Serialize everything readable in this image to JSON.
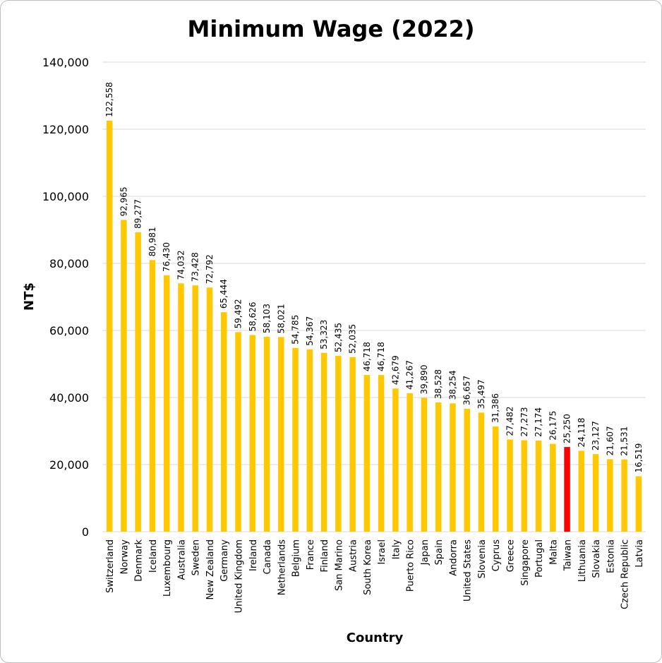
{
  "chart_data": {
    "type": "bar",
    "title": "Minimum Wage (2022)",
    "xlabel": "Country",
    "ylabel": "NT$",
    "ylim": [
      0,
      140000
    ],
    "yticks": [
      0,
      20000,
      40000,
      60000,
      80000,
      100000,
      120000,
      140000
    ],
    "ytick_labels": [
      "0",
      "20,000",
      "40,000",
      "60,000",
      "80,000",
      "100,000",
      "120,000",
      "140,000"
    ],
    "grid": true,
    "colors": {
      "default": "#FFC800",
      "highlight": "#FF0000",
      "grid": "#D9D9D9"
    },
    "highlight": "Taiwan",
    "categories": [
      "Switzerland",
      "Norway",
      "Denmark",
      "Iceland",
      "Luxembourg",
      "Australia",
      "Sweden",
      "New Zealand",
      "Germany",
      "United Kingdom",
      "Ireland",
      "Canada",
      "Netherlands",
      "Belgium",
      "France",
      "Finland",
      "San Marino",
      "Austria",
      "South Korea",
      "Israel",
      "Italy",
      "Puerto Rico",
      "Japan",
      "Spain",
      "Andorra",
      "United States",
      "Slovenia",
      "Cyprus",
      "Greece",
      "Singapore",
      "Portugal",
      "Malta",
      "Taiwan",
      "Lithuania",
      "Slovakia",
      "Estonia",
      "Czech Republic",
      "Latvia"
    ],
    "values": [
      122558,
      92965,
      89277,
      80981,
      76430,
      74032,
      73428,
      72792,
      65444,
      59492,
      58626,
      58103,
      58021,
      54785,
      54367,
      53323,
      52435,
      52035,
      46718,
      46718,
      42679,
      41267,
      39890,
      38528,
      38254,
      36657,
      35497,
      31386,
      27482,
      27273,
      27174,
      26175,
      25250,
      24118,
      23127,
      21607,
      21531,
      16519
    ],
    "data_labels": [
      "122,558",
      "92,965",
      "89,277",
      "80,981",
      "76,430",
      "74,032",
      "73,428",
      "72,792",
      "65,444",
      "59,492",
      "58,626",
      "58,103",
      "58,021",
      "54,785",
      "54,367",
      "53,323",
      "52,435",
      "52,035",
      "46,718",
      "46,718",
      "42,679",
      "41,267",
      "39,890",
      "38,528",
      "38,254",
      "36,657",
      "35,497",
      "31,386",
      "27,482",
      "27,273",
      "27,174",
      "26,175",
      "25,250",
      "24,118",
      "23,127",
      "21,607",
      "21,531",
      "16,519"
    ]
  }
}
